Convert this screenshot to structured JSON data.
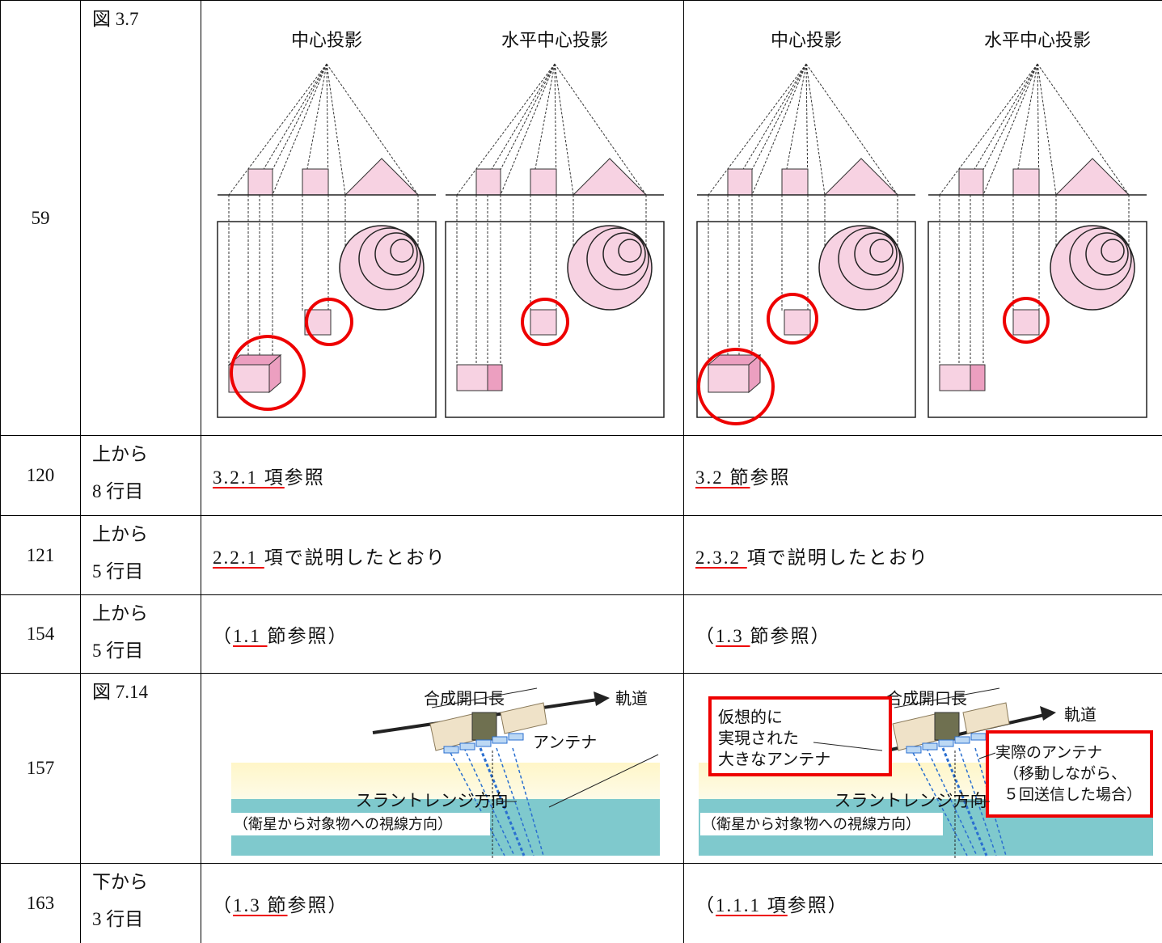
{
  "table": {
    "rows": [
      {
        "page": "59",
        "location": [
          "図 3.7"
        ],
        "before": {
          "figure": {
            "panels": [
              "中心投影",
              "水平中心投影"
            ]
          }
        },
        "after": {
          "figure": {
            "panels": [
              "中心投影",
              "水平中心投影"
            ]
          }
        }
      },
      {
        "page": "120",
        "location": [
          "上から",
          "8 行目"
        ],
        "before": [
          {
            "text": "3.2.1 項",
            "underline": true
          },
          {
            "text": "参照"
          }
        ],
        "after": [
          {
            "text": "3.2 節",
            "underline": true
          },
          {
            "text": "参照"
          }
        ]
      },
      {
        "page": "121",
        "location": [
          "上から",
          "5 行目"
        ],
        "before": [
          {
            "text": "2.2.1 ",
            "underline": true
          },
          {
            "text": "項で説明したとおり"
          }
        ],
        "after": [
          {
            "text": "2.3.2 ",
            "underline": true
          },
          {
            "text": "項で説明したとおり"
          }
        ]
      },
      {
        "page": "154",
        "location": [
          "上から",
          "5 行目"
        ],
        "before": [
          {
            "text": "（"
          },
          {
            "text": "1.1 ",
            "underline": true
          },
          {
            "text": "節参照）"
          }
        ],
        "after": [
          {
            "text": "（"
          },
          {
            "text": "1.3 ",
            "underline": true
          },
          {
            "text": "節参照）"
          }
        ]
      },
      {
        "page": "157",
        "location": [
          "図 7.14"
        ],
        "before": {
          "figure": {
            "aperture": "合成開口長",
            "orbit": "軌道",
            "antenna": "アンテナ",
            "slant": "スラントレンジ方向",
            "slant_note": "（衛星から対象物への視線方向）"
          }
        },
        "after": {
          "figure": {
            "aperture": "合成開口長",
            "orbit": "軌道",
            "virtual": [
              "仮想的に",
              "実現された",
              "大きなアンテナ"
            ],
            "real": [
              "実際のアンテナ",
              "（移動しながら、",
              "５回送信した場合）"
            ],
            "slant": "スラントレンジ方向",
            "slant_note": "（衛星から対象物への視線方向）"
          }
        }
      },
      {
        "page": "163",
        "location": [
          "下から",
          "3 行目"
        ],
        "before": [
          {
            "text": "（"
          },
          {
            "text": "1.3 節",
            "underline": true
          },
          {
            "text": "参照）"
          }
        ],
        "after": [
          {
            "text": "（"
          },
          {
            "text": "1.1.1 項",
            "underline": true
          },
          {
            "text": "参照）"
          }
        ]
      }
    ]
  }
}
